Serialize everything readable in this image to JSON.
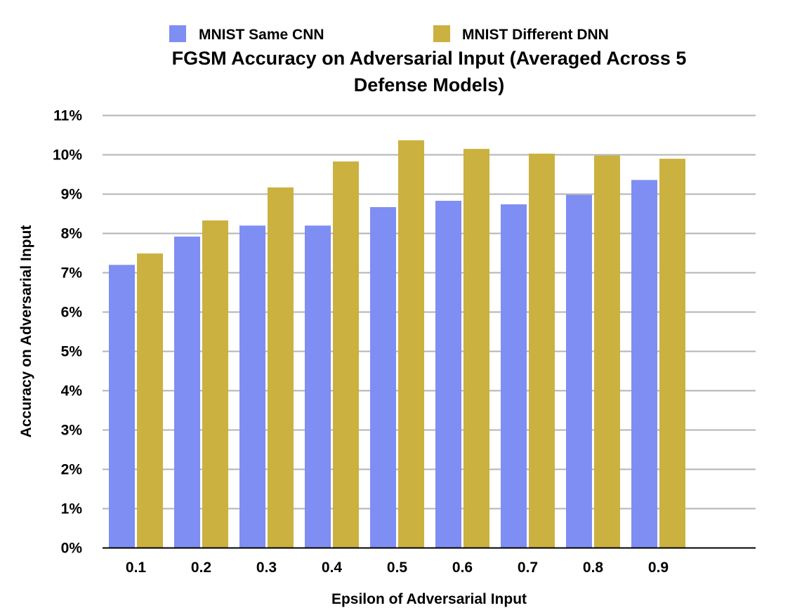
{
  "chart_data": {
    "type": "bar",
    "title_lines": [
      "FGSM Accuracy on Adversarial Input (Averaged Across 5",
      "Defense Models)"
    ],
    "xlabel": "Epsilon of Adversarial Input",
    "ylabel": "Accuracy on Adversarial Input",
    "categories": [
      "0.1",
      "0.2",
      "0.3",
      "0.4",
      "0.5",
      "0.6",
      "0.7",
      "0.8",
      "0.9"
    ],
    "series": [
      {
        "name": "MNIST Same CNN",
        "color": "#7f8ef2",
        "values": [
          7.2,
          7.92,
          8.2,
          8.2,
          8.67,
          8.83,
          8.74,
          8.98,
          9.36
        ]
      },
      {
        "name": "MNIST Different DNN",
        "color": "#cbb13f",
        "values": [
          7.49,
          8.33,
          9.17,
          9.83,
          10.37,
          10.15,
          10.03,
          9.98,
          9.9
        ]
      }
    ],
    "ylim": [
      0,
      11
    ],
    "ytick_step": 1,
    "ytick_suffix": "%",
    "grid": true,
    "legend_position": "top-center"
  }
}
